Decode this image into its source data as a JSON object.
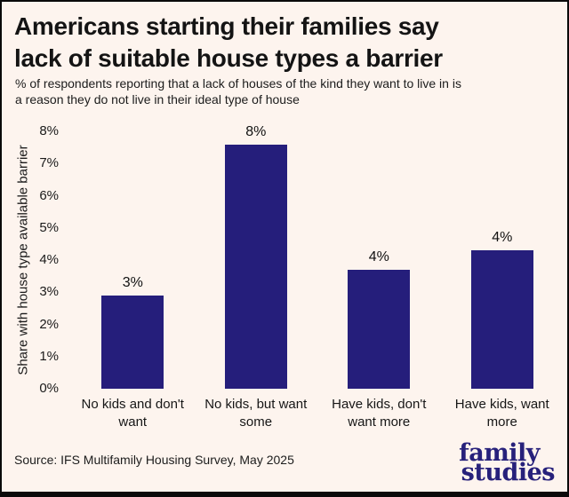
{
  "header": {
    "title_lines": [
      "Americans starting their families say",
      "lack of suitable house types a barrier"
    ],
    "subtitle_lines": [
      "% of respondents reporting that a lack of houses of the kind they want to live in is",
      "a reason they do not live in their ideal type of house"
    ]
  },
  "chart_data": {
    "type": "bar",
    "title": "Americans starting their families say lack of suitable house types a barrier",
    "subtitle": "% of respondents reporting that a lack of houses of the kind they want to live in is a reason they do not live in their ideal type of house",
    "categories": [
      "No kids and don't want",
      "No kids, but want some",
      "Have kids, don't want more",
      "Have kids, want more"
    ],
    "values": [
      2.9,
      7.6,
      3.7,
      4.3
    ],
    "bar_labels": [
      "3%",
      "8%",
      "4%",
      "4%"
    ],
    "xlabel": "",
    "ylabel": "Share with house type available barrier",
    "ylim": [
      0,
      8
    ],
    "y_ticks": [
      "0%",
      "1%",
      "2%",
      "3%",
      "4%",
      "5%",
      "6%",
      "7%",
      "8%"
    ],
    "grid": false,
    "legend": false
  },
  "footer": {
    "source": "Source: IFS Multifamily Housing Survey, May 2025",
    "logo": {
      "line1": "family",
      "line2": "studies"
    }
  },
  "colors": {
    "background": "#fdf4ee",
    "bar": "#251e7b",
    "logo": "#27217b",
    "border": "#0a0a0a",
    "text": "#161616"
  }
}
